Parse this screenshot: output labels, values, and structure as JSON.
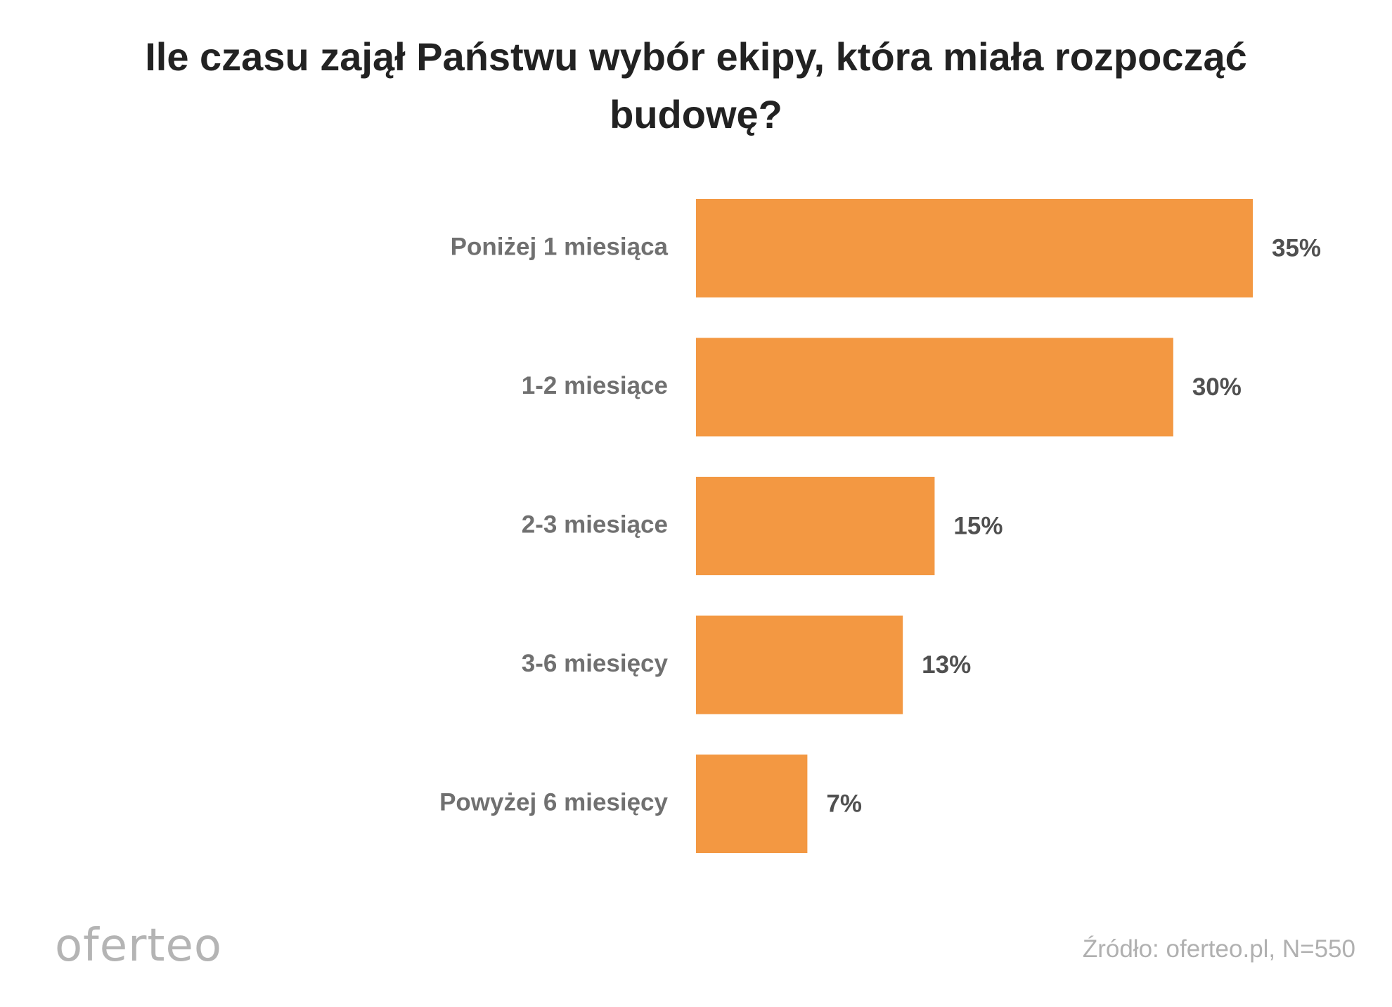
{
  "chart_data": {
    "type": "bar",
    "orientation": "horizontal",
    "title": "Ile czasu zajął Państwu wybór ekipy, która miała rozpocząć budowę?",
    "categories": [
      "Poniżej 1 miesiąca",
      "1-2 miesiące",
      "2-3 miesiące",
      "3-6 miesięcy",
      "Powyżej 6 miesięcy"
    ],
    "values": [
      35,
      30,
      15,
      13,
      7
    ],
    "value_labels": [
      "35%",
      "30%",
      "15%",
      "13%",
      "7%"
    ],
    "unit": "%",
    "xlim": [
      0,
      35
    ],
    "grid": false,
    "legend": "none",
    "bar_color": "#F39842"
  },
  "branding": {
    "logo": "oferteo"
  },
  "footer": {
    "source": "Źródło: oferteo.pl, N=550"
  }
}
